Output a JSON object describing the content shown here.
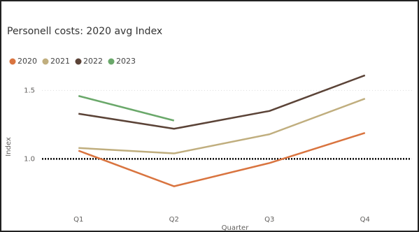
{
  "chart_data": {
    "type": "line",
    "title": "Personell costs: 2020 avg Index",
    "categories": [
      "Q1",
      "Q2",
      "Q3",
      "Q4"
    ],
    "series": [
      {
        "name": "2020",
        "color": "#d9743f",
        "values": [
          1.06,
          0.8,
          0.97,
          1.19
        ]
      },
      {
        "name": "2021",
        "color": "#c0ae7e",
        "values": [
          1.08,
          1.04,
          1.18,
          1.44
        ]
      },
      {
        "name": "2022",
        "color": "#5b4337",
        "values": [
          1.33,
          1.22,
          1.35,
          1.61
        ]
      },
      {
        "name": "2023",
        "color": "#6aa86a",
        "values": [
          1.46,
          1.28,
          null,
          null
        ]
      }
    ],
    "xlabel": "Quarter",
    "ylabel": "Index",
    "ylim": [
      0.65,
      1.65
    ],
    "yticks": [
      {
        "value": 1,
        "label": "1.0"
      },
      {
        "value": 1.5,
        "label": "1.5"
      }
    ],
    "reference_line": 1,
    "grid": true,
    "legend": "top-left"
  }
}
